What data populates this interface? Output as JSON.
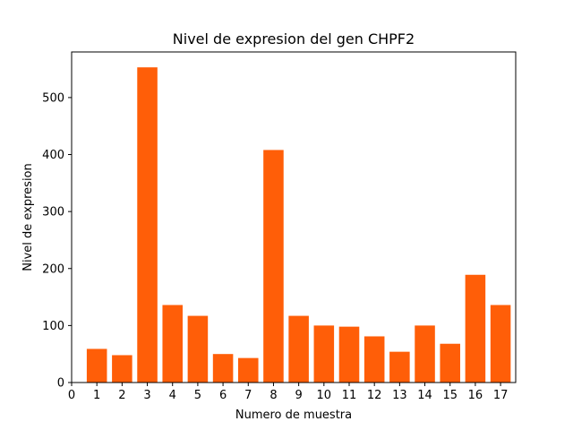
{
  "chart_data": {
    "type": "bar",
    "title": "Nivel de expresion del gen CHPF2",
    "xlabel": "Numero de muestra",
    "ylabel": "Nivel de expresion",
    "categories": [
      1,
      2,
      3,
      4,
      5,
      6,
      7,
      8,
      9,
      10,
      11,
      12,
      13,
      14,
      15,
      16,
      17
    ],
    "values": [
      59,
      48,
      553,
      136,
      117,
      50,
      43,
      408,
      117,
      100,
      98,
      81,
      54,
      100,
      68,
      189,
      136
    ],
    "xticks": [
      0,
      1,
      2,
      3,
      4,
      5,
      6,
      7,
      8,
      9,
      10,
      11,
      12,
      13,
      14,
      15,
      16,
      17
    ],
    "yticks": [
      0,
      100,
      200,
      300,
      400,
      500
    ],
    "xlim": [
      0,
      17.6
    ],
    "ylim": [
      0,
      580
    ],
    "bar_color": "#ff5e08",
    "grid": false,
    "legend": "none"
  }
}
